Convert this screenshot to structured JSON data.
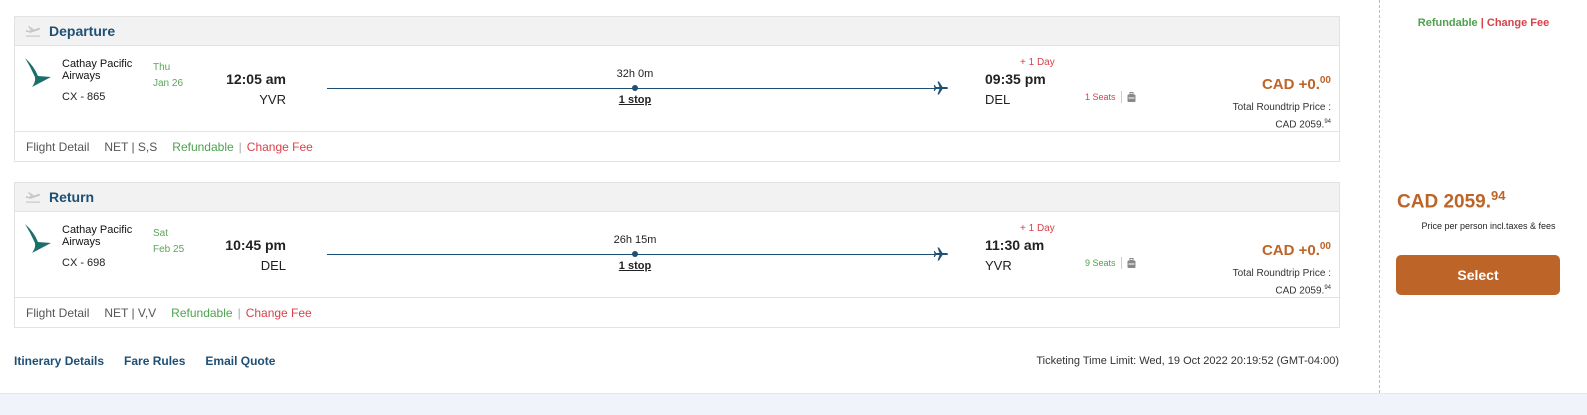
{
  "colors": {
    "accent": "#bd6428",
    "navy": "#1e4f74",
    "refundable": "#4ea24e",
    "change_fee": "#d9414a"
  },
  "segments": [
    {
      "title": "Departure",
      "icon": "plane-takeoff-icon",
      "airline": "Cathay Pacific Airways",
      "flight_no": "CX - 865",
      "day": "Thu",
      "date": "Jan 26",
      "dep_time": "12:05 am",
      "dep_code": "YVR",
      "duration": "32h 0m",
      "stops": "1 stop",
      "plus_day": "+ 1 Day",
      "arr_time": "09:35 pm",
      "arr_code": "DEL",
      "seats": "1 Seats",
      "seats_color": "#d9414a",
      "price_main": "CAD +0.",
      "price_dec": "00",
      "total_label": "Total Roundtrip Price :",
      "total_main": "CAD 2059.",
      "total_dec": "94",
      "flight_detail": "Flight Detail",
      "fare_class": "NET | S,S",
      "refundable": "Refundable",
      "change_fee": "Change Fee"
    },
    {
      "title": "Return",
      "icon": "plane-landing-icon",
      "airline": "Cathay Pacific Airways",
      "flight_no": "CX - 698",
      "day": "Sat",
      "date": "Feb 25",
      "dep_time": "10:45 pm",
      "dep_code": "DEL",
      "duration": "26h 15m",
      "stops": "1 stop",
      "plus_day": "+ 1 Day",
      "arr_time": "11:30 am",
      "arr_code": "YVR",
      "seats": "9 Seats",
      "seats_color": "#4ea24e",
      "price_main": "CAD +0.",
      "price_dec": "00",
      "total_label": "Total Roundtrip Price :",
      "total_main": "CAD 2059.",
      "total_dec": "94",
      "flight_detail": "Flight Detail",
      "fare_class": "NET | V,V",
      "refundable": "Refundable",
      "change_fee": "Change Fee"
    }
  ],
  "links": {
    "itinerary": "Itinerary Details",
    "fare_rules": "Fare Rules",
    "email_quote": "Email Quote"
  },
  "ticketing_limit": "Ticketing Time Limit: Wed, 19 Oct 2022 20:19:52 (GMT-04:00)",
  "sidebar": {
    "refundable": "Refundable",
    "separator": "|",
    "change_fee": "Change Fee",
    "price_main": "CAD 2059.",
    "price_dec": "94",
    "price_note": "Price per person incl.taxes & fees",
    "select_label": "Select"
  }
}
